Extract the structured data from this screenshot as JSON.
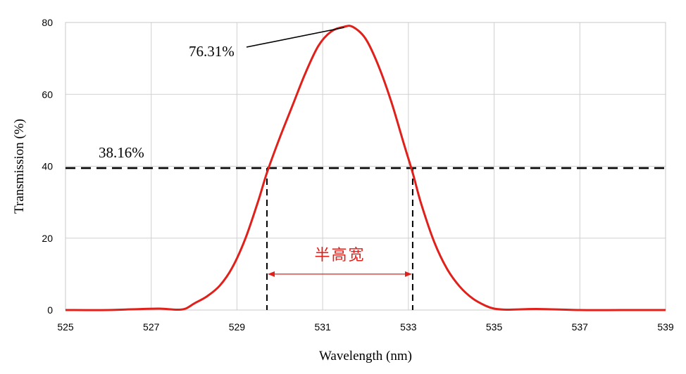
{
  "chart_data": {
    "type": "line",
    "title": "",
    "xlabel": "Wavelength (nm)",
    "ylabel": "Transmission (%)",
    "xlim": [
      525,
      539
    ],
    "ylim": [
      0,
      80
    ],
    "x_ticks": [
      525,
      527,
      529,
      531,
      533,
      535,
      537,
      539
    ],
    "y_ticks": [
      0,
      20,
      40,
      60,
      80
    ],
    "grid": true,
    "legend": "none",
    "series": [
      {
        "color": "#e0201a",
        "x": [
          525,
          526,
          526.8,
          527.2,
          527.6,
          527.8,
          528.0,
          528.3,
          528.6,
          528.9,
          529.2,
          529.5,
          529.7,
          530.0,
          530.3,
          530.6,
          530.9,
          531.2,
          531.5,
          531.7,
          532.0,
          532.3,
          532.6,
          532.9,
          533.1,
          533.3,
          533.6,
          533.9,
          534.2,
          534.5,
          534.8,
          535.0,
          535.3,
          536,
          537,
          538,
          539
        ],
        "y": [
          0,
          0,
          0.3,
          0.4,
          0.1,
          0.4,
          1.8,
          3.8,
          6.8,
          12,
          20,
          30.5,
          38.2,
          48,
          57,
          66,
          73.5,
          77.5,
          78.8,
          78.8,
          75.5,
          68,
          58,
          46,
          38.2,
          29.5,
          19,
          11.5,
          6.5,
          3.2,
          1.2,
          0.4,
          0.1,
          0.3,
          0,
          0,
          0
        ]
      }
    ],
    "annotations": {
      "peak_label": "76.31%",
      "peak_point": {
        "x": 531.5,
        "y": 78.8
      },
      "half_label": "38.16%",
      "half_level": 39.5,
      "fwhm_left_x": 529.7,
      "fwhm_right_x": 533.1,
      "fwhm_arrow_y": 10,
      "fwhm_label": "半高宽"
    }
  }
}
